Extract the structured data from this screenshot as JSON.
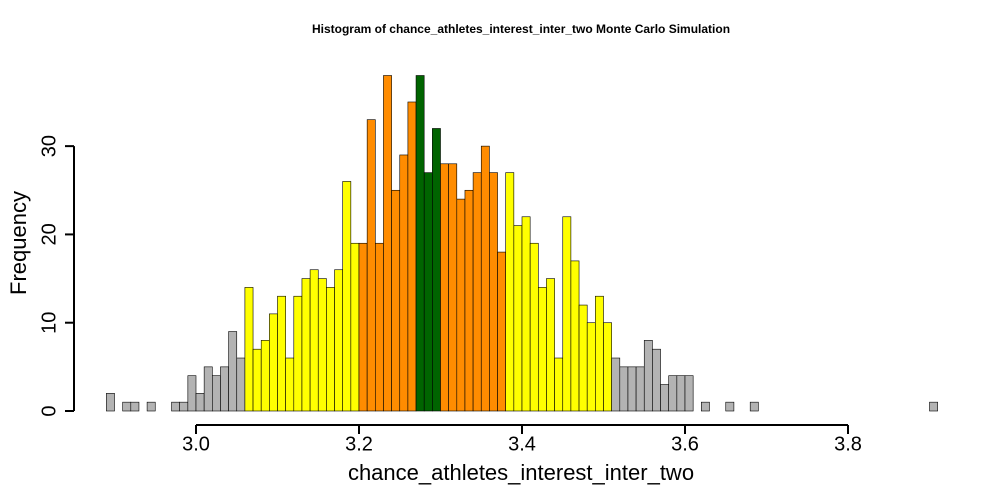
{
  "chart_data": {
    "type": "histogram",
    "title": "Histogram of  chance_athletes_interest_inter_two  Monte Carlo Simulation",
    "x_label": "chance_athletes_interest_inter_two",
    "y_label": "Frequency",
    "bins": [
      2.89,
      2.9,
      2.91,
      2.92,
      2.93,
      2.94,
      2.95,
      2.96,
      2.97,
      2.98,
      2.99,
      3.0,
      3.01,
      3.02,
      3.03,
      3.04,
      3.05,
      3.06,
      3.07,
      3.08,
      3.09,
      3.1,
      3.11,
      3.12,
      3.13,
      3.14,
      3.15,
      3.16,
      3.17,
      3.18,
      3.19,
      3.2,
      3.21,
      3.22,
      3.23,
      3.24,
      3.25,
      3.26,
      3.27,
      3.28,
      3.29,
      3.3,
      3.31,
      3.32,
      3.33,
      3.34,
      3.35,
      3.36,
      3.37,
      3.38,
      3.39,
      3.4,
      3.41,
      3.42,
      3.43,
      3.44,
      3.45,
      3.46,
      3.47,
      3.48,
      3.49,
      3.5,
      3.51,
      3.52,
      3.53,
      3.54,
      3.55,
      3.56,
      3.57,
      3.58,
      3.59,
      3.6,
      3.61,
      3.62,
      3.63,
      3.64,
      3.65,
      3.66,
      3.67,
      3.68,
      3.69,
      3.7,
      3.71,
      3.72,
      3.73,
      3.74,
      3.75,
      3.76,
      3.77,
      3.78,
      3.79,
      3.8,
      3.81,
      3.82,
      3.83,
      3.84,
      3.85,
      3.86,
      3.87,
      3.88,
      3.89,
      3.9,
      3.91
    ],
    "values": [
      2,
      0,
      1,
      1,
      0,
      1,
      0,
      0,
      1,
      1,
      4,
      2,
      5,
      4,
      5,
      9,
      6,
      14,
      7,
      8,
      11,
      13,
      6,
      13,
      15,
      16,
      15,
      14,
      16,
      26,
      19,
      19,
      33,
      19,
      38,
      25,
      29,
      35,
      38,
      27,
      32,
      28,
      28,
      24,
      25,
      27,
      30,
      27,
      18,
      27,
      21,
      22,
      19,
      14,
      15,
      6,
      22,
      17,
      12,
      10,
      13,
      10,
      6,
      5,
      5,
      5,
      8,
      7,
      3,
      4,
      4,
      4,
      0,
      1,
      0,
      0,
      1,
      0,
      0,
      1,
      0,
      0,
      0,
      0,
      0,
      0,
      0,
      0,
      0,
      0,
      0,
      0,
      0,
      0,
      0,
      0,
      0,
      0,
      0,
      0,
      0,
      1
    ],
    "bar_colors": [
      "#b3b3b3",
      "#b3b3b3",
      "#b3b3b3",
      "#b3b3b3",
      "#b3b3b3",
      "#b3b3b3",
      "#b3b3b3",
      "#b3b3b3",
      "#b3b3b3",
      "#b3b3b3",
      "#b3b3b3",
      "#b3b3b3",
      "#b3b3b3",
      "#b3b3b3",
      "#b3b3b3",
      "#b3b3b3",
      "#b3b3b3",
      "#ffff00",
      "#ffff00",
      "#ffff00",
      "#ffff00",
      "#ffff00",
      "#ffff00",
      "#ffff00",
      "#ffff00",
      "#ffff00",
      "#ffff00",
      "#ffff00",
      "#ffff00",
      "#ffff00",
      "#ffff00",
      "#ff8c00",
      "#ff8c00",
      "#ff8c00",
      "#ff8c00",
      "#ff8c00",
      "#ff8c00",
      "#ff8c00",
      "#006400",
      "#006400",
      "#006400",
      "#ff8c00",
      "#ff8c00",
      "#ff8c00",
      "#ff8c00",
      "#ff8c00",
      "#ff8c00",
      "#ff8c00",
      "#ff8c00",
      "#ffff00",
      "#ffff00",
      "#ffff00",
      "#ffff00",
      "#ffff00",
      "#ffff00",
      "#ffff00",
      "#ffff00",
      "#ffff00",
      "#ffff00",
      "#ffff00",
      "#ffff00",
      "#ffff00",
      "#b3b3b3",
      "#b3b3b3",
      "#b3b3b3",
      "#b3b3b3",
      "#b3b3b3",
      "#b3b3b3",
      "#b3b3b3",
      "#b3b3b3",
      "#b3b3b3",
      "#b3b3b3",
      "#b3b3b3",
      "#b3b3b3",
      "#b3b3b3",
      "#b3b3b3",
      "#b3b3b3",
      "#b3b3b3",
      "#b3b3b3",
      "#b3b3b3",
      "#b3b3b3",
      "#b3b3b3",
      "#b3b3b3",
      "#b3b3b3",
      "#b3b3b3",
      "#b3b3b3",
      "#b3b3b3",
      "#b3b3b3",
      "#b3b3b3",
      "#b3b3b3",
      "#b3b3b3",
      "#b3b3b3",
      "#b3b3b3",
      "#b3b3b3",
      "#b3b3b3",
      "#b3b3b3",
      "#b3b3b3",
      "#b3b3b3",
      "#b3b3b3",
      "#b3b3b3",
      "#b3b3b3",
      "#b3b3b3"
    ],
    "xlim": [
      2.89,
      3.91
    ],
    "ylim": [
      0,
      38
    ],
    "xticks": [
      {
        "value": 3.0,
        "label": "3.0"
      },
      3.2,
      3.4,
      3.6,
      3.8
    ],
    "yticks": [
      0,
      10,
      20,
      30
    ]
  }
}
